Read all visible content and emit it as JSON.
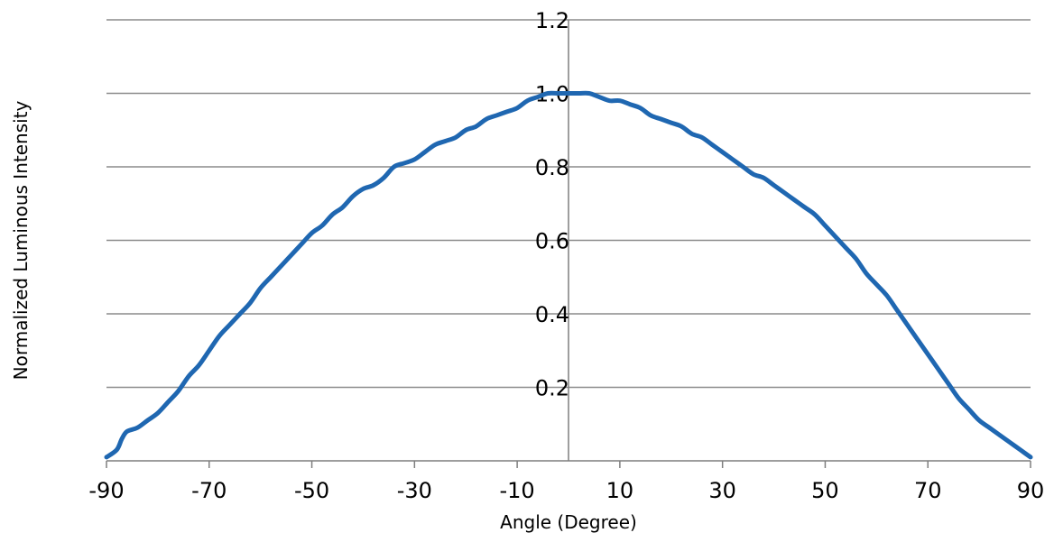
{
  "chart_data": {
    "type": "line",
    "title": "",
    "xlabel": "Angle (Degree)",
    "ylabel": "Normalized Luminous Intensity",
    "xlim": [
      -90,
      90
    ],
    "ylim": [
      0,
      1.2
    ],
    "x_ticks": [
      -90,
      -70,
      -50,
      -30,
      -10,
      10,
      30,
      50,
      70,
      90
    ],
    "y_ticks": [
      0.2,
      0.4,
      0.6,
      0.8,
      1.0,
      1.2
    ],
    "grid": "horizontal",
    "line_color": "#1f67b1",
    "series": [
      {
        "x": [
          -90,
          -88,
          -87,
          -86,
          -84,
          -82,
          -80,
          -78,
          -76,
          -74,
          -72,
          -70,
          -68,
          -66,
          -64,
          -62,
          -60,
          -58,
          -56,
          -54,
          -52,
          -50,
          -48,
          -46,
          -44,
          -42,
          -40,
          -38,
          -36,
          -34,
          -32,
          -30,
          -28,
          -26,
          -24,
          -22,
          -20,
          -18,
          -16,
          -14,
          -12,
          -10,
          -8,
          -6,
          -4,
          -2,
          0,
          2,
          4,
          6,
          8,
          10,
          12,
          14,
          16,
          18,
          20,
          22,
          24,
          26,
          28,
          30,
          32,
          34,
          36,
          38,
          40,
          42,
          44,
          46,
          48,
          50,
          52,
          54,
          56,
          58,
          60,
          62,
          64,
          66,
          68,
          70,
          72,
          74,
          76,
          78,
          80,
          82,
          84,
          86,
          88,
          90
        ],
        "y": [
          0.01,
          0.03,
          0.06,
          0.08,
          0.09,
          0.11,
          0.13,
          0.16,
          0.19,
          0.23,
          0.26,
          0.3,
          0.34,
          0.37,
          0.4,
          0.43,
          0.47,
          0.5,
          0.53,
          0.56,
          0.59,
          0.62,
          0.64,
          0.67,
          0.69,
          0.72,
          0.74,
          0.75,
          0.77,
          0.8,
          0.81,
          0.82,
          0.84,
          0.86,
          0.87,
          0.88,
          0.9,
          0.91,
          0.93,
          0.94,
          0.95,
          0.96,
          0.98,
          0.99,
          1.0,
          1.0,
          1.0,
          1.0,
          1.0,
          0.99,
          0.98,
          0.98,
          0.97,
          0.96,
          0.94,
          0.93,
          0.92,
          0.91,
          0.89,
          0.88,
          0.86,
          0.84,
          0.82,
          0.8,
          0.78,
          0.77,
          0.75,
          0.73,
          0.71,
          0.69,
          0.67,
          0.64,
          0.61,
          0.58,
          0.55,
          0.51,
          0.48,
          0.45,
          0.41,
          0.37,
          0.33,
          0.29,
          0.25,
          0.21,
          0.17,
          0.14,
          0.11,
          0.09,
          0.07,
          0.05,
          0.03,
          0.01
        ]
      }
    ]
  }
}
